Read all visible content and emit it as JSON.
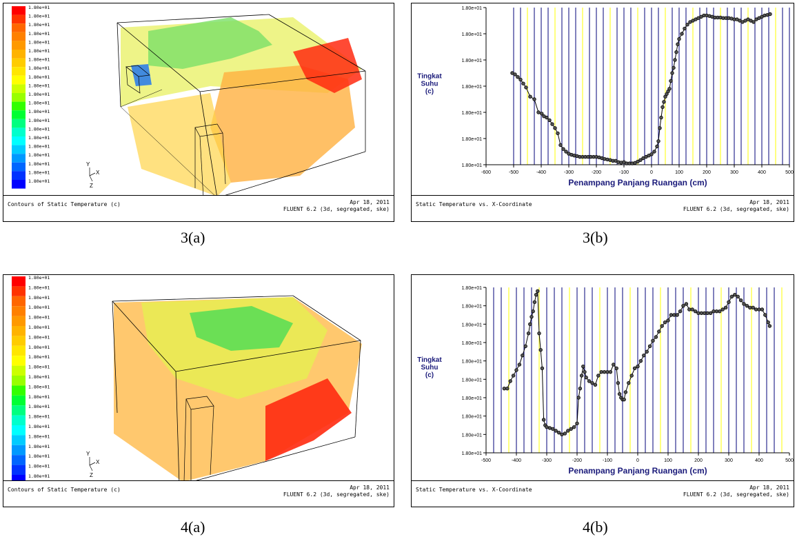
{
  "figures": [
    {
      "id": "3a",
      "caption": "3(a)",
      "footer_left": "Contours of Static Temperature (c)",
      "footer_date": "Apr 18, 2011",
      "footer_version": "FLUENT 6.2 (3d, segregated, ske)",
      "legend_labels": [
        "1.80e+01",
        "1.80e+01",
        "1.80e+01",
        "1.80e+01",
        "1.80e+01",
        "1.80e+01",
        "1.80e+01",
        "1.80e+01",
        "1.80e+01",
        "1.80e+01",
        "1.80e+01",
        "1.80e+01",
        "1.80e+01",
        "1.80e+01",
        "1.80e+01",
        "1.80e+01",
        "1.80e+01",
        "1.80e+01",
        "1.80e+01",
        "1.80e+01",
        "1.80e+01"
      ],
      "legend_colors": [
        "#ff0000",
        "#ff3300",
        "#ff6600",
        "#ff8000",
        "#ff9900",
        "#ffb300",
        "#ffcc00",
        "#ffe600",
        "#ffff00",
        "#ccff00",
        "#99ff00",
        "#33ff00",
        "#00ff33",
        "#00ff80",
        "#00ffcc",
        "#00ffff",
        "#00ccff",
        "#0099ff",
        "#0066ff",
        "#0033ff",
        "#0000ff"
      ],
      "axes_labels": [
        "Y",
        "X",
        "Z"
      ]
    },
    {
      "id": "4a",
      "caption": "4(a)",
      "footer_left": "Contours of Static Temperature (c)",
      "footer_date": "Apr 18, 2011",
      "footer_version": "FLUENT 6.2 (3d, segregated, ske)",
      "legend_labels": [
        "1.80e+01",
        "1.80e+01",
        "1.80e+01",
        "1.80e+01",
        "1.80e+01",
        "1.80e+01",
        "1.80e+01",
        "1.80e+01",
        "1.80e+01",
        "1.80e+01",
        "1.80e+01",
        "1.80e+01",
        "1.80e+01",
        "1.80e+01",
        "1.80e+01",
        "1.80e+01",
        "1.80e+01",
        "1.80e+01",
        "1.80e+01",
        "1.80e+01",
        "1.80e+01"
      ],
      "legend_colors": [
        "#ff0000",
        "#ff3300",
        "#ff6600",
        "#ff8000",
        "#ff9900",
        "#ffb300",
        "#ffcc00",
        "#ffe600",
        "#ffff00",
        "#ccff00",
        "#99ff00",
        "#33ff00",
        "#00ff33",
        "#00ff80",
        "#00ffcc",
        "#00ffff",
        "#00ccff",
        "#0099ff",
        "#0066ff",
        "#0033ff",
        "#0000ff"
      ],
      "axes_labels": [
        "Y",
        "X",
        "Z"
      ]
    }
  ],
  "chart_data": [
    {
      "id": "3b",
      "type": "line",
      "caption": "3(b)",
      "footer_left": "Static Temperature vs. X-Coordinate",
      "footer_date": "Apr 18, 2011",
      "footer_version": "FLUENT 6.2 (3d, segregated, ske)",
      "ylabel": [
        "Tingkat",
        "Suhu",
        "(c)"
      ],
      "xlabel": "Penampang Panjang Ruangan (cm)",
      "xlim": [
        -600,
        500
      ],
      "xticks": [
        -600,
        -500,
        -400,
        -300,
        -200,
        -100,
        0,
        100,
        200,
        300,
        400,
        500
      ],
      "ytick_labels": [
        "1.80e+01",
        "1.80e+01",
        "1.80e+01",
        "1.80e+01",
        "1.80e+01",
        "1.80e+01",
        "1.80e+01"
      ],
      "ylim": [
        0,
        6
      ],
      "grid_lines": {
        "spacing": 25,
        "start": -500,
        "end": 500,
        "color_major": "#ffff00",
        "color_minor": "#00007a"
      },
      "x": [
        -505,
        -495,
        -485,
        -475,
        -465,
        -455,
        -440,
        -425,
        -410,
        -398,
        -390,
        -380,
        -370,
        -360,
        -350,
        -340,
        -330,
        -320,
        -310,
        -300,
        -290,
        -280,
        -270,
        -260,
        -250,
        -240,
        -230,
        -220,
        -210,
        -200,
        -190,
        -180,
        -170,
        -160,
        -150,
        -140,
        -130,
        -120,
        -110,
        -100,
        -90,
        -80,
        -70,
        -60,
        -50,
        -40,
        -30,
        -20,
        -10,
        0,
        10,
        20,
        25,
        30,
        35,
        40,
        45,
        50,
        55,
        60,
        65,
        70,
        75,
        80,
        85,
        90,
        95,
        100,
        110,
        120,
        130,
        140,
        150,
        160,
        170,
        180,
        190,
        200,
        210,
        220,
        230,
        240,
        250,
        260,
        270,
        280,
        290,
        300,
        310,
        320,
        330,
        340,
        350,
        360,
        370,
        380,
        390,
        400,
        410,
        420,
        430
      ],
      "y": [
        3.5,
        3.45,
        3.35,
        3.25,
        3.1,
        2.95,
        2.6,
        2.5,
        2.0,
        1.95,
        1.85,
        1.8,
        1.7,
        1.55,
        1.4,
        1.2,
        0.75,
        0.6,
        0.5,
        0.42,
        0.38,
        0.35,
        0.33,
        0.3,
        0.3,
        0.3,
        0.3,
        0.3,
        0.3,
        0.3,
        0.28,
        0.25,
        0.22,
        0.2,
        0.18,
        0.15,
        0.15,
        0.1,
        0.08,
        0.1,
        0.05,
        0.05,
        0.05,
        0.07,
        0.12,
        0.18,
        0.25,
        0.3,
        0.35,
        0.4,
        0.5,
        0.7,
        0.9,
        1.4,
        1.8,
        2.2,
        2.4,
        2.6,
        2.7,
        2.8,
        2.9,
        3.2,
        3.5,
        3.7,
        4.0,
        4.3,
        4.6,
        4.8,
        5.0,
        5.2,
        5.35,
        5.45,
        5.5,
        5.55,
        5.6,
        5.65,
        5.7,
        5.7,
        5.68,
        5.65,
        5.62,
        5.62,
        5.62,
        5.6,
        5.6,
        5.6,
        5.58,
        5.55,
        5.55,
        5.5,
        5.45,
        5.5,
        5.55,
        5.5,
        5.45,
        5.55,
        5.6,
        5.65,
        5.7,
        5.72,
        5.75
      ]
    },
    {
      "id": "4b",
      "type": "line",
      "caption": "4(b)",
      "footer_left": "Static Temperature vs. X-Coordinate",
      "footer_date": "Apr 18, 2011",
      "footer_version": "FLUENT 6.2 (3d, segregated, ske)",
      "ylabel": [
        "Tingkat",
        "Suhu",
        "(c)"
      ],
      "xlabel": "Penampang Panjang Ruangan (cm)",
      "xlim": [
        -500,
        500
      ],
      "xticks": [
        -500,
        -400,
        -300,
        -200,
        -100,
        0,
        100,
        200,
        300,
        400,
        500
      ],
      "ytick_labels": [
        "1.80e+01",
        "1.80e+01",
        "1.80e+01",
        "1.80e+01",
        "1.80e+01",
        "1.80e+01",
        "1.80e+01",
        "1.80e+01",
        "1.80e+01",
        "1.80e+01"
      ],
      "ylim": [
        0,
        9
      ],
      "grid_lines": {
        "spacing": 25,
        "start": -475,
        "end": 475,
        "color_major": "#ffff00",
        "color_minor": "#00007a"
      },
      "x": [
        -440,
        -430,
        -420,
        -410,
        -400,
        -390,
        -380,
        -370,
        -360,
        -355,
        -350,
        -345,
        -340,
        -335,
        -330,
        -325,
        -320,
        -315,
        -310,
        -305,
        -300,
        -290,
        -280,
        -270,
        -260,
        -250,
        -240,
        -230,
        -220,
        -210,
        -200,
        -195,
        -190,
        -185,
        -180,
        -175,
        -170,
        -160,
        -150,
        -140,
        -130,
        -120,
        -110,
        -100,
        -90,
        -80,
        -70,
        -65,
        -60,
        -55,
        -50,
        -45,
        -40,
        -30,
        -20,
        -10,
        0,
        10,
        20,
        30,
        40,
        50,
        60,
        70,
        80,
        90,
        100,
        110,
        120,
        130,
        140,
        150,
        160,
        170,
        180,
        190,
        200,
        210,
        220,
        230,
        240,
        250,
        260,
        270,
        280,
        290,
        300,
        310,
        320,
        330,
        340,
        350,
        360,
        370,
        380,
        390,
        400,
        410,
        420,
        430,
        435
      ],
      "y": [
        3.5,
        3.5,
        3.9,
        4.2,
        4.5,
        4.8,
        5.3,
        5.8,
        6.5,
        7.0,
        7.4,
        7.7,
        8.2,
        8.6,
        8.8,
        6.5,
        5.6,
        4.6,
        1.8,
        1.5,
        1.4,
        1.35,
        1.3,
        1.2,
        1.1,
        1.0,
        1.05,
        1.2,
        1.3,
        1.4,
        1.6,
        3.0,
        3.5,
        4.2,
        4.7,
        4.4,
        4.1,
        3.9,
        3.8,
        3.7,
        4.2,
        4.4,
        4.4,
        4.4,
        4.4,
        4.8,
        4.6,
        3.8,
        3.2,
        3.0,
        2.9,
        2.9,
        3.3,
        3.8,
        4.2,
        4.6,
        4.7,
        5.0,
        5.3,
        5.5,
        5.8,
        6.1,
        6.3,
        6.6,
        6.9,
        7.1,
        7.2,
        7.5,
        7.5,
        7.5,
        7.7,
        8.0,
        8.1,
        7.8,
        7.8,
        7.7,
        7.6,
        7.6,
        7.6,
        7.6,
        7.6,
        7.7,
        7.7,
        7.7,
        7.8,
        7.9,
        8.2,
        8.5,
        8.6,
        8.5,
        8.3,
        8.1,
        8.0,
        7.9,
        7.9,
        7.8,
        7.8,
        7.8,
        7.5,
        7.1,
        6.9
      ]
    }
  ]
}
